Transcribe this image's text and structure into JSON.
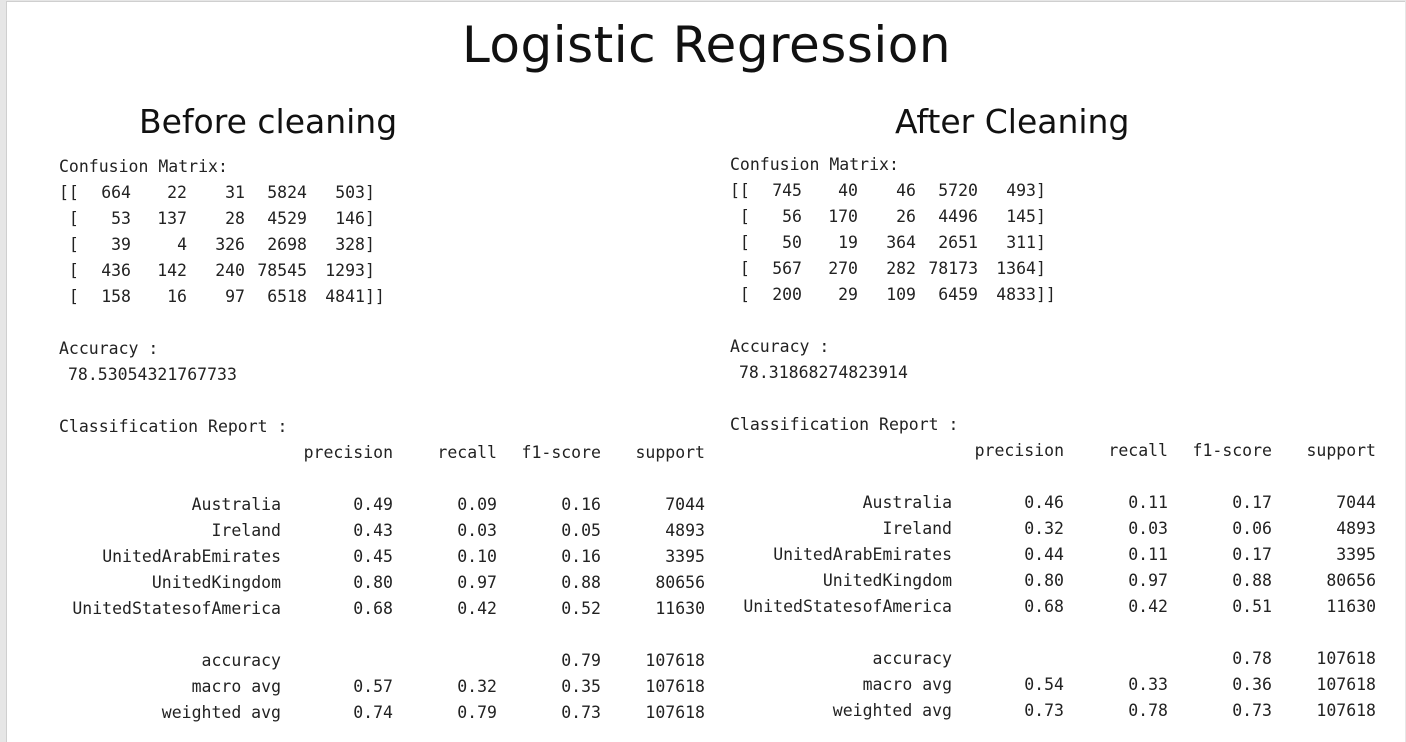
{
  "title": "Logistic Regression",
  "before": {
    "heading": "Before cleaning",
    "confusion_label": "Confusion Matrix:",
    "matrix": [
      [
        664,
        22,
        31,
        5824,
        503
      ],
      [
        53,
        137,
        28,
        4529,
        146
      ],
      [
        39,
        4,
        326,
        2698,
        328
      ],
      [
        436,
        142,
        240,
        78545,
        1293
      ],
      [
        158,
        16,
        97,
        6518,
        4841
      ]
    ],
    "accuracy_label": "Accuracy :",
    "accuracy_value": "78.53054321767733",
    "report_label": "Classification Report :",
    "columns": [
      "precision",
      "recall",
      "f1-score",
      "support"
    ],
    "rows": [
      {
        "label": "Australia",
        "precision": "0.49",
        "recall": "0.09",
        "f1": "0.16",
        "support": "7044"
      },
      {
        "label": "Ireland",
        "precision": "0.43",
        "recall": "0.03",
        "f1": "0.05",
        "support": "4893"
      },
      {
        "label": "UnitedArabEmirates",
        "precision": "0.45",
        "recall": "0.10",
        "f1": "0.16",
        "support": "3395"
      },
      {
        "label": "UnitedKingdom",
        "precision": "0.80",
        "recall": "0.97",
        "f1": "0.88",
        "support": "80656"
      },
      {
        "label": "UnitedStatesofAmerica",
        "precision": "0.68",
        "recall": "0.42",
        "f1": "0.52",
        "support": "11630"
      }
    ],
    "summary": [
      {
        "label": "accuracy",
        "precision": "",
        "recall": "",
        "f1": "0.79",
        "support": "107618"
      },
      {
        "label": "macro avg",
        "precision": "0.57",
        "recall": "0.32",
        "f1": "0.35",
        "support": "107618"
      },
      {
        "label": "weighted avg",
        "precision": "0.74",
        "recall": "0.79",
        "f1": "0.73",
        "support": "107618"
      }
    ]
  },
  "after": {
    "heading": "After Cleaning",
    "confusion_label": "Confusion Matrix:",
    "matrix": [
      [
        745,
        40,
        46,
        5720,
        493
      ],
      [
        56,
        170,
        26,
        4496,
        145
      ],
      [
        50,
        19,
        364,
        2651,
        311
      ],
      [
        567,
        270,
        282,
        78173,
        1364
      ],
      [
        200,
        29,
        109,
        6459,
        4833
      ]
    ],
    "accuracy_label": "Accuracy :",
    "accuracy_value": "78.31868274823914",
    "report_label": "Classification Report :",
    "columns": [
      "precision",
      "recall",
      "f1-score",
      "support"
    ],
    "rows": [
      {
        "label": "Australia",
        "precision": "0.46",
        "recall": "0.11",
        "f1": "0.17",
        "support": "7044"
      },
      {
        "label": "Ireland",
        "precision": "0.32",
        "recall": "0.03",
        "f1": "0.06",
        "support": "4893"
      },
      {
        "label": "UnitedArabEmirates",
        "precision": "0.44",
        "recall": "0.11",
        "f1": "0.17",
        "support": "3395"
      },
      {
        "label": "UnitedKingdom",
        "precision": "0.80",
        "recall": "0.97",
        "f1": "0.88",
        "support": "80656"
      },
      {
        "label": "UnitedStatesofAmerica",
        "precision": "0.68",
        "recall": "0.42",
        "f1": "0.51",
        "support": "11630"
      }
    ],
    "summary": [
      {
        "label": "accuracy",
        "precision": "",
        "recall": "",
        "f1": "0.78",
        "support": "107618"
      },
      {
        "label": "macro avg",
        "precision": "0.54",
        "recall": "0.33",
        "f1": "0.36",
        "support": "107618"
      },
      {
        "label": "weighted avg",
        "precision": "0.73",
        "recall": "0.78",
        "f1": "0.73",
        "support": "107618"
      }
    ]
  }
}
